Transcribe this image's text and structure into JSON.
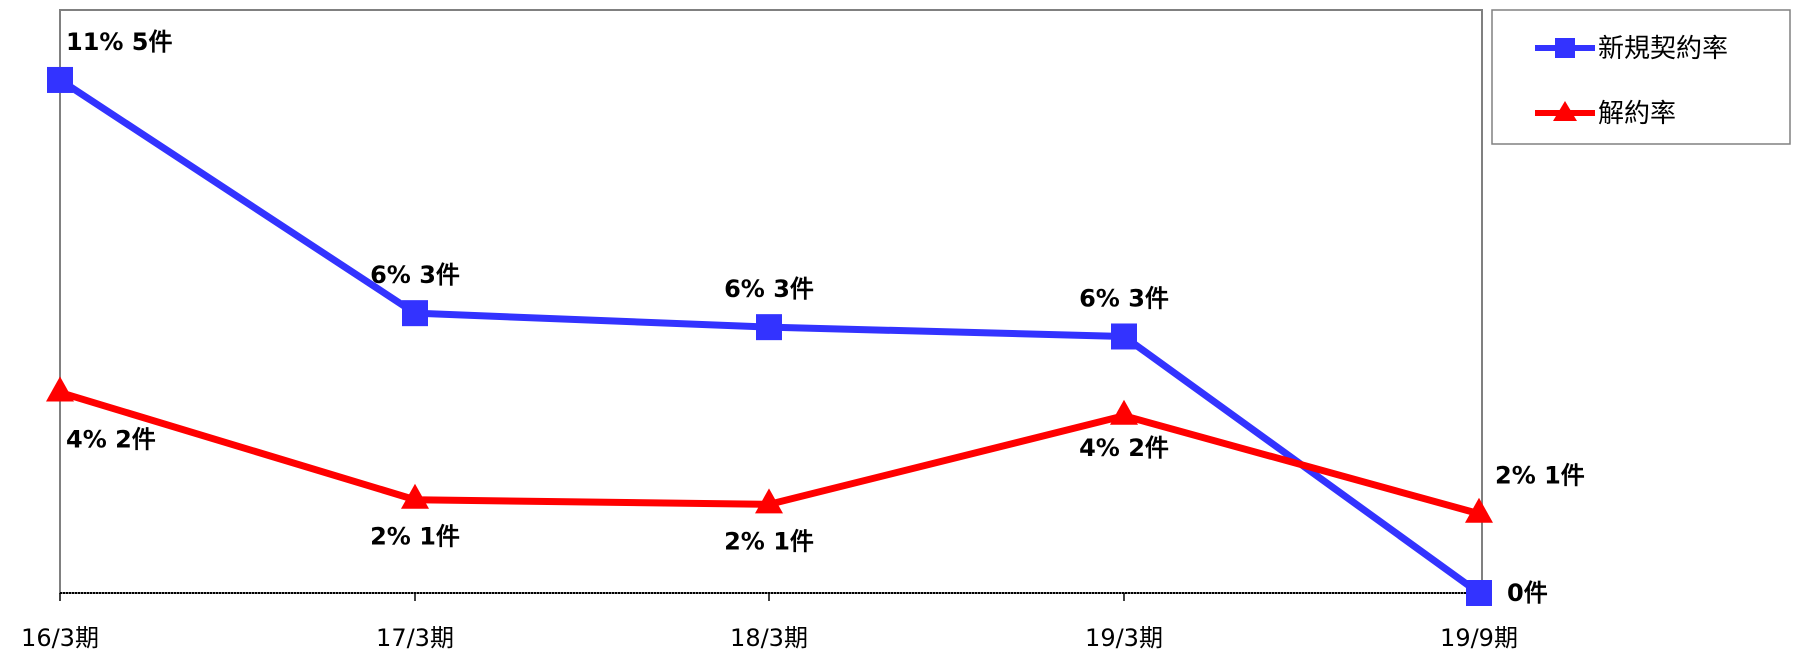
{
  "chart_data": {
    "type": "line",
    "categories": [
      "16/3期",
      "17/3期",
      "18/3期",
      "19/3期",
      "19/9期"
    ],
    "ylim": [
      0,
      12.5
    ],
    "grid": false,
    "legend_position": "top-right",
    "series": [
      {
        "name": "新規契約率",
        "color": "#3333ff",
        "marker": "square",
        "values": [
          11,
          6,
          5.7,
          5.5,
          0
        ],
        "labels": [
          "11% 5件",
          "6% 3件",
          "6% 3件",
          "6% 3件",
          "0件"
        ]
      },
      {
        "name": "解約率",
        "color": "#ff0000",
        "marker": "triangle",
        "values": [
          4.3,
          2,
          1.9,
          3.8,
          1.7
        ],
        "labels": [
          "4% 2件",
          "2% 1件",
          "2% 1件",
          "4% 2件",
          "2% 1件"
        ]
      }
    ]
  }
}
